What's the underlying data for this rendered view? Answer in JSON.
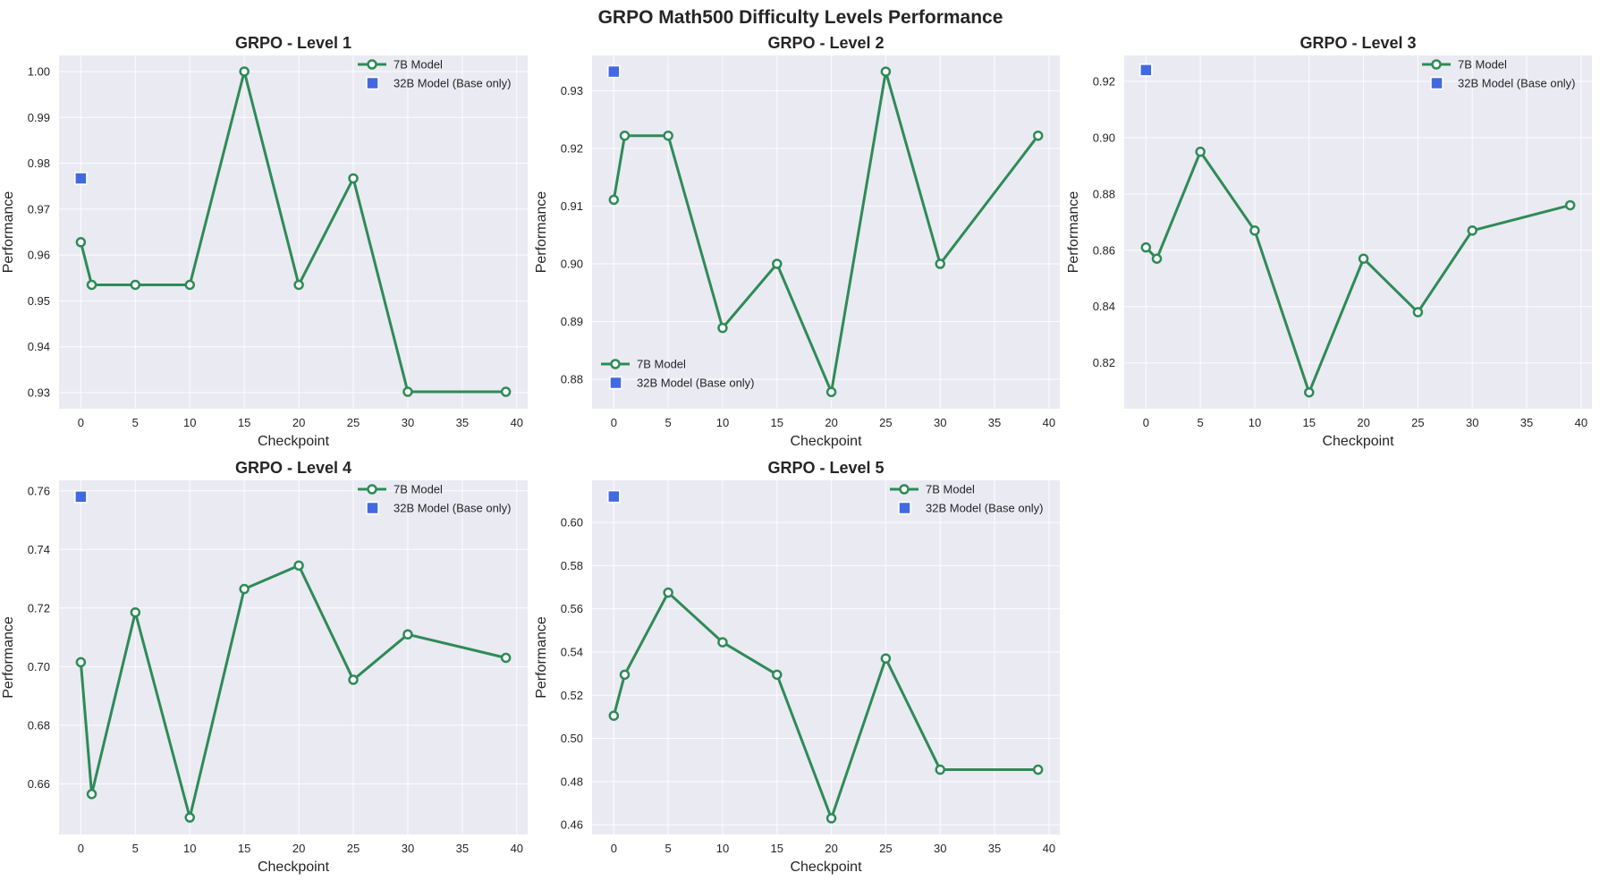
{
  "figure": {
    "title": "GRPO Math500 Difficulty Levels Performance"
  },
  "colors": {
    "series_7b": "#2e8b57",
    "series_32b": "#4169e1",
    "plot_background": "#eaeaf2",
    "grid": "#ffffff"
  },
  "chart_data": [
    {
      "type": "line",
      "title": "GRPO - Level 1",
      "xlabel": "Checkpoint",
      "ylabel": "Performance",
      "xlim": [
        -2,
        41
      ],
      "ylim": [
        0.9265,
        1.0035
      ],
      "xticks": [
        0,
        5,
        10,
        15,
        20,
        25,
        30,
        35,
        40
      ],
      "yticks": [
        0.93,
        0.94,
        0.95,
        0.96,
        0.97,
        0.98,
        0.99,
        1.0
      ],
      "ytick_labels": [
        "0.93",
        "0.94",
        "0.95",
        "0.96",
        "0.97",
        "0.98",
        "0.99",
        "1.00"
      ],
      "grid": true,
      "legend_position": "top-right",
      "series": [
        {
          "name": "7B Model",
          "kind": "line-marker",
          "x": [
            0,
            1,
            5,
            10,
            15,
            20,
            25,
            30,
            39
          ],
          "y": [
            0.9628,
            0.9535,
            0.9535,
            0.9535,
            1.0,
            0.9535,
            0.9767,
            0.9302,
            0.9302
          ]
        },
        {
          "name": "32B Model (Base only)",
          "kind": "square-marker",
          "x": [
            0
          ],
          "y": [
            0.9767
          ]
        }
      ]
    },
    {
      "type": "line",
      "title": "GRPO - Level 2",
      "xlabel": "Checkpoint",
      "ylabel": "Performance",
      "xlim": [
        -2,
        41
      ],
      "ylim": [
        0.8749,
        0.9361
      ],
      "xticks": [
        0,
        5,
        10,
        15,
        20,
        25,
        30,
        35,
        40
      ],
      "yticks": [
        0.88,
        0.89,
        0.9,
        0.91,
        0.92,
        0.93
      ],
      "ytick_labels": [
        "0.88",
        "0.89",
        "0.90",
        "0.91",
        "0.92",
        "0.93"
      ],
      "grid": true,
      "legend_position": "bottom-left",
      "series": [
        {
          "name": "7B Model",
          "kind": "line-marker",
          "x": [
            0,
            1,
            5,
            10,
            15,
            20,
            25,
            30,
            39
          ],
          "y": [
            0.9111,
            0.9222,
            0.9222,
            0.8889,
            0.9,
            0.8778,
            0.9333,
            0.9,
            0.9222
          ]
        },
        {
          "name": "32B Model (Base only)",
          "kind": "square-marker",
          "x": [
            0
          ],
          "y": [
            0.9333
          ]
        }
      ]
    },
    {
      "type": "line",
      "title": "GRPO - Level 3",
      "xlabel": "Checkpoint",
      "ylabel": "Performance",
      "xlim": [
        -2,
        41
      ],
      "ylim": [
        0.8037,
        0.9292
      ],
      "xticks": [
        0,
        5,
        10,
        15,
        20,
        25,
        30,
        35,
        40
      ],
      "yticks": [
        0.82,
        0.84,
        0.86,
        0.88,
        0.9,
        0.92
      ],
      "ytick_labels": [
        "0.82",
        "0.84",
        "0.86",
        "0.88",
        "0.90",
        "0.92"
      ],
      "grid": true,
      "legend_position": "top-right",
      "series": [
        {
          "name": "7B Model",
          "kind": "line-marker",
          "x": [
            0,
            1,
            5,
            10,
            15,
            20,
            25,
            30,
            39
          ],
          "y": [
            0.861,
            0.857,
            0.895,
            0.867,
            0.8095,
            0.857,
            0.838,
            0.867,
            0.876
          ]
        },
        {
          "name": "32B Model (Base only)",
          "kind": "square-marker",
          "x": [
            0
          ],
          "y": [
            0.924
          ]
        }
      ]
    },
    {
      "type": "line",
      "title": "GRPO - Level 4",
      "xlabel": "Checkpoint",
      "ylabel": "Performance",
      "xlim": [
        -2,
        41
      ],
      "ylim": [
        0.6427,
        0.7636
      ],
      "xticks": [
        0,
        5,
        10,
        15,
        20,
        25,
        30,
        35,
        40
      ],
      "yticks": [
        0.66,
        0.68,
        0.7,
        0.72,
        0.74,
        0.76
      ],
      "ytick_labels": [
        "0.66",
        "0.68",
        "0.70",
        "0.72",
        "0.74",
        "0.76"
      ],
      "grid": true,
      "legend_position": "top-right",
      "series": [
        {
          "name": "7B Model",
          "kind": "line-marker",
          "x": [
            0,
            1,
            5,
            10,
            15,
            20,
            25,
            30,
            39
          ],
          "y": [
            0.7015,
            0.6565,
            0.7185,
            0.6485,
            0.7265,
            0.7345,
            0.6955,
            0.711,
            0.703
          ]
        },
        {
          "name": "32B Model (Base only)",
          "kind": "square-marker",
          "x": [
            0
          ],
          "y": [
            0.758
          ]
        }
      ]
    },
    {
      "type": "line",
      "title": "GRPO - Level 5",
      "xlabel": "Checkpoint",
      "ylabel": "Performance",
      "xlim": [
        -2,
        41
      ],
      "ylim": [
        0.4555,
        0.6195
      ],
      "xticks": [
        0,
        5,
        10,
        15,
        20,
        25,
        30,
        35,
        40
      ],
      "yticks": [
        0.46,
        0.48,
        0.5,
        0.52,
        0.54,
        0.56,
        0.58,
        0.6
      ],
      "ytick_labels": [
        "0.46",
        "0.48",
        "0.50",
        "0.52",
        "0.54",
        "0.56",
        "0.58",
        "0.60"
      ],
      "grid": true,
      "legend_position": "top-right",
      "series": [
        {
          "name": "7B Model",
          "kind": "line-marker",
          "x": [
            0,
            1,
            5,
            10,
            15,
            20,
            25,
            30,
            39
          ],
          "y": [
            0.5105,
            0.5295,
            0.5675,
            0.5445,
            0.5295,
            0.463,
            0.537,
            0.4855,
            0.4855
          ]
        },
        {
          "name": "32B Model (Base only)",
          "kind": "square-marker",
          "x": [
            0
          ],
          "y": [
            0.612
          ]
        }
      ]
    }
  ]
}
